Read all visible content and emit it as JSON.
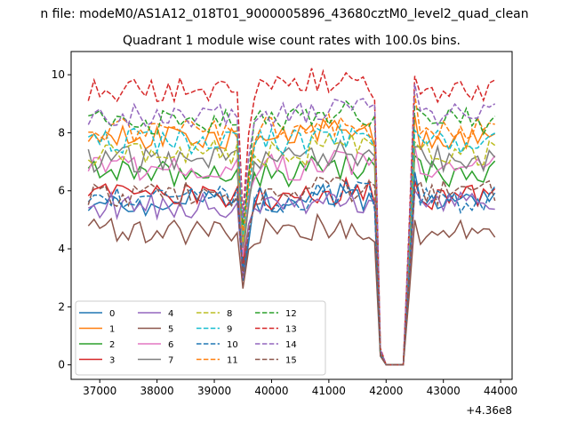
{
  "figure": {
    "suptitle": "n file: modeM0/AS1A12_018T01_9000005896_43680cztM0_level2_quad_clean",
    "title": "Quadrant 1 module wise count rates with 100.0s bins.",
    "x_offset_label": "+4.36e8"
  },
  "chart_data": {
    "type": "line",
    "title": "Quadrant 1 module wise count rates with 100.0s bins.",
    "xlabel": "",
    "ylabel": "",
    "x_offset": 436000000,
    "xlim": [
      36500,
      44200
    ],
    "ylim": [
      -0.5,
      10.8
    ],
    "xticks": [
      37000,
      38000,
      39000,
      40000,
      41000,
      42000,
      43000,
      44000
    ],
    "xtick_labels": [
      "37000",
      "38000",
      "39000",
      "40000",
      "41000",
      "42000",
      "43000",
      "44000"
    ],
    "yticks": [
      0,
      2,
      4,
      6,
      8,
      10
    ],
    "ytick_labels": [
      "0",
      "2",
      "4",
      "6",
      "8",
      "10"
    ],
    "grid": false,
    "legend_position": "lower-left",
    "legend_columns": 4,
    "x_start": 36800,
    "x_step": 100,
    "n_points": 72,
    "series": [
      {
        "name": "0",
        "color": "#1f77b4",
        "dash": "solid",
        "level": 5.6
      },
      {
        "name": "1",
        "color": "#ff7f0e",
        "dash": "solid",
        "level": 7.8
      },
      {
        "name": "2",
        "color": "#2ca02c",
        "dash": "solid",
        "level": 6.6
      },
      {
        "name": "3",
        "color": "#d62728",
        "dash": "solid",
        "level": 5.8
      },
      {
        "name": "4",
        "color": "#9467bd",
        "dash": "solid",
        "level": 5.5
      },
      {
        "name": "5",
        "color": "#8c564b",
        "dash": "solid",
        "level": 4.6
      },
      {
        "name": "6",
        "color": "#e377c2",
        "dash": "solid",
        "level": 6.8
      },
      {
        "name": "7",
        "color": "#7f7f7f",
        "dash": "solid",
        "level": 7.1
      },
      {
        "name": "8",
        "color": "#bcbd22",
        "dash": "dashed",
        "level": 7.3
      },
      {
        "name": "9",
        "color": "#17becf",
        "dash": "dashed",
        "level": 7.7
      },
      {
        "name": "10",
        "color": "#1f77b4",
        "dash": "dashed",
        "level": 5.7
      },
      {
        "name": "11",
        "color": "#ff7f0e",
        "dash": "dashed",
        "level": 8.1
      },
      {
        "name": "12",
        "color": "#2ca02c",
        "dash": "dashed",
        "level": 8.4
      },
      {
        "name": "13",
        "color": "#d62728",
        "dash": "dashed",
        "level": 9.5
      },
      {
        "name": "14",
        "color": "#9467bd",
        "dash": "dashed",
        "level": 8.6
      },
      {
        "name": "15",
        "color": "#8c564b",
        "dash": "dashed",
        "level": 5.9
      }
    ]
  }
}
